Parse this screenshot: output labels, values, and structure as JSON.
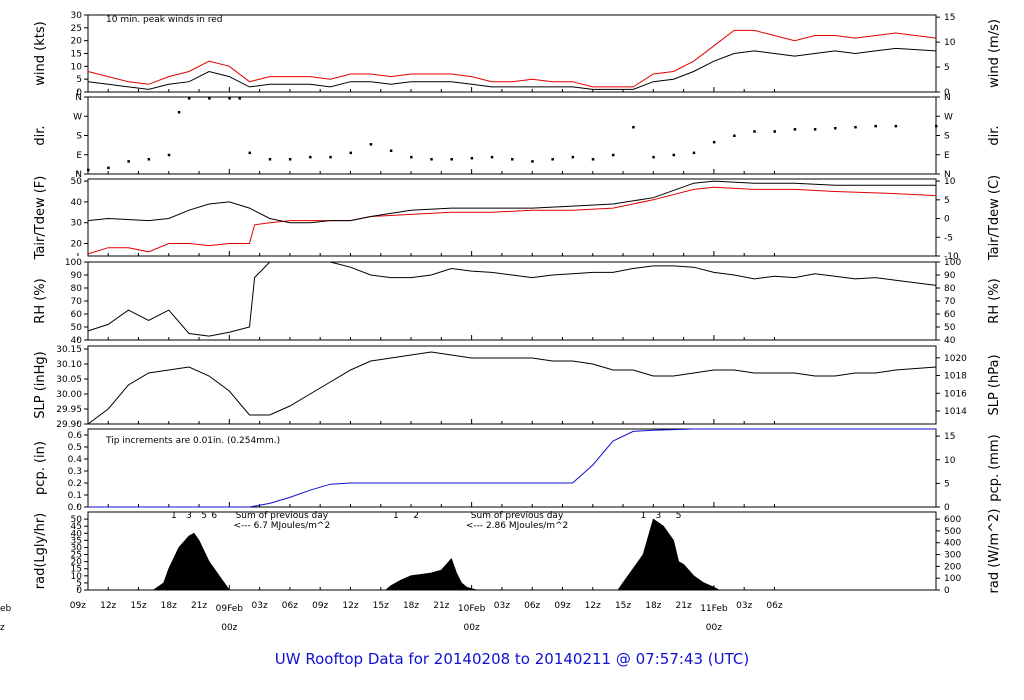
{
  "title": "UW Rooftop Data for 20140208  to  20140211 @ 07:57:43  (UTC)",
  "colors": {
    "red": "#e00000",
    "blue": "#1010d0",
    "magenta": "#b000c0",
    "black": "#000000"
  },
  "chart_data": {
    "type": "line",
    "x_hours": [
      -14,
      70
    ],
    "x_tick_labels": [
      "09z",
      "12z",
      "15z",
      "18z",
      "21z",
      "03z",
      "06z",
      "09z",
      "12z",
      "15z",
      "18z",
      "21z",
      "03z",
      "06z",
      "09z",
      "12z",
      "15z",
      "18z",
      "21z",
      "03z",
      "06z"
    ],
    "x_tick_hours": [
      -15,
      -12,
      -9,
      -6,
      -3,
      3,
      6,
      9,
      12,
      15,
      18,
      21,
      27,
      30,
      33,
      36,
      39,
      42,
      45,
      51,
      54
    ],
    "date_labels": [
      {
        "date": "09Feb",
        "time": "00z",
        "hour": 0
      },
      {
        "date": "10Feb",
        "time": "00z",
        "hour": 24
      },
      {
        "date": "11Feb",
        "time": "00z",
        "hour": 48
      }
    ],
    "edge_date": {
      "date": "eb",
      "time": "z"
    },
    "panels": [
      {
        "id": "wind",
        "ylabel": "wind (kts)",
        "ylabel_right": "wind (m/s)",
        "ylim": [
          0,
          30
        ],
        "left_ticks": [
          "0",
          "5",
          "10",
          "15",
          "20",
          "25",
          "30"
        ],
        "right_ticks": [
          "0",
          "5",
          "10",
          "15"
        ],
        "right_tick_vals": [
          0,
          5,
          10,
          15
        ],
        "right_scale": 1.944,
        "annotation": "10 min. peak winds in red",
        "series": [
          {
            "name": "wind",
            "hours": [
              -14,
              -12,
              -10,
              -8,
              -6,
              -4,
              -2,
              0,
              2,
              4,
              6,
              8,
              10,
              12,
              14,
              16,
              18,
              20,
              22,
              24,
              26,
              28,
              30,
              32,
              34,
              36,
              38,
              40,
              42,
              44,
              46,
              48,
              50,
              52,
              54,
              56,
              58,
              60,
              62,
              64,
              66,
              70
            ],
            "values": [
              4,
              3,
              2,
              1,
              3,
              4,
              8,
              6,
              2,
              3,
              3,
              3,
              2,
              4,
              4,
              3,
              4,
              4,
              4,
              3,
              2,
              2,
              2,
              2,
              2,
              1,
              1,
              1,
              4,
              5,
              8,
              12,
              15,
              16,
              15,
              14,
              15,
              16,
              15,
              16,
              17,
              16
            ]
          },
          {
            "name": "peak",
            "hours": [
              -14,
              -12,
              -10,
              -8,
              -6,
              -4,
              -2,
              0,
              2,
              4,
              6,
              8,
              10,
              12,
              14,
              16,
              18,
              20,
              22,
              24,
              26,
              28,
              30,
              32,
              34,
              36,
              38,
              40,
              42,
              44,
              46,
              48,
              50,
              52,
              54,
              56,
              58,
              60,
              62,
              64,
              66,
              70
            ],
            "values": [
              8,
              6,
              4,
              3,
              6,
              8,
              12,
              10,
              4,
              6,
              6,
              6,
              5,
              7,
              7,
              6,
              7,
              7,
              7,
              6,
              4,
              4,
              5,
              4,
              4,
              2,
              2,
              2,
              7,
              8,
              12,
              18,
              24,
              24,
              22,
              20,
              22,
              22,
              21,
              22,
              23,
              21
            ]
          }
        ]
      },
      {
        "id": "dir",
        "ylabel": "dir.",
        "ylabel_right": "dir.",
        "left_ticks": [
          "N",
          "E",
          "S",
          "W",
          "N"
        ],
        "right_ticks": [
          "N",
          "E",
          "S",
          "W",
          "N"
        ],
        "ylim": [
          0,
          360
        ],
        "series": [
          {
            "name": "direction",
            "hours": [
              -14,
              -12,
              -10,
              -8,
              -6,
              -5,
              -4,
              -2,
              0,
              1,
              2,
              4,
              6,
              8,
              10,
              12,
              14,
              16,
              18,
              20,
              22,
              24,
              26,
              28,
              30,
              32,
              34,
              36,
              38,
              40,
              42,
              44,
              46,
              48,
              50,
              52,
              54,
              56,
              58,
              60,
              62,
              64,
              66,
              70
            ],
            "values": [
              20,
              30,
              60,
              70,
              90,
              290,
              355,
              355,
              355,
              355,
              100,
              70,
              70,
              80,
              80,
              100,
              140,
              110,
              80,
              70,
              70,
              75,
              80,
              70,
              60,
              70,
              80,
              70,
              90,
              220,
              80,
              90,
              100,
              150,
              180,
              200,
              200,
              210,
              210,
              215,
              220,
              225,
              225,
              225
            ]
          }
        ]
      },
      {
        "id": "temp",
        "ylabel": "Tair/Tdew (F)",
        "ylabel_right": "Tair/Tdew (C)",
        "ylim": [
          14,
          51
        ],
        "left_ticks": [
          "20",
          "30",
          "40",
          "50"
        ],
        "right_ticks": [
          "-10",
          "-5",
          "0",
          "5",
          "10"
        ],
        "right_tick_vals": [
          -10,
          -5,
          0,
          5,
          10
        ],
        "series": [
          {
            "name": "Tair",
            "hours": [
              -14,
              -12,
              -8,
              -6,
              -4,
              -2,
              0,
              2,
              4,
              6,
              8,
              10,
              12,
              14,
              18,
              22,
              26,
              30,
              34,
              38,
              42,
              46,
              48,
              52,
              56,
              60,
              66,
              70
            ],
            "values": [
              31,
              32,
              31,
              32,
              36,
              39,
              40,
              37,
              32,
              30,
              30,
              31,
              31,
              33,
              36,
              37,
              37,
              37,
              38,
              39,
              42,
              49,
              50,
              49,
              49,
              48,
              48,
              48
            ]
          },
          {
            "name": "Tdew",
            "hours": [
              -14,
              -12,
              -10,
              -8,
              -6,
              -4,
              -2,
              0,
              2,
              2.5,
              4,
              6,
              8,
              10,
              12,
              14,
              18,
              22,
              26,
              30,
              34,
              38,
              42,
              46,
              48,
              52,
              56,
              60,
              66,
              70
            ],
            "values": [
              15,
              18,
              18,
              16,
              20,
              20,
              19,
              20,
              20,
              29,
              30,
              31,
              31,
              31,
              31,
              33,
              34,
              35,
              35,
              36,
              36,
              37,
              41,
              46,
              47,
              46,
              46,
              45,
              44,
              43
            ]
          }
        ]
      },
      {
        "id": "rh",
        "ylabel": "RH (%)",
        "ylabel_right": "RH (%)",
        "ylim": [
          40,
          100
        ],
        "left_ticks": [
          "40",
          "50",
          "60",
          "70",
          "80",
          "90",
          "100"
        ],
        "right_ticks": [
          "40",
          "50",
          "60",
          "70",
          "80",
          "90",
          "100"
        ],
        "series": [
          {
            "name": "RH",
            "hours": [
              -14,
              -12,
              -10,
              -8,
              -6,
              -4,
              -2,
              0,
              2,
              2.5,
              4,
              6,
              8,
              10,
              12,
              14,
              16,
              18,
              20,
              22,
              24,
              26,
              28,
              30,
              32,
              34,
              36,
              38,
              40,
              42,
              44,
              46,
              48,
              50,
              52,
              54,
              56,
              58,
              60,
              62,
              64,
              66,
              70
            ],
            "values": [
              47,
              52,
              63,
              55,
              63,
              45,
              43,
              46,
              50,
              88,
              100,
              100,
              100,
              100,
              96,
              90,
              88,
              88,
              90,
              95,
              93,
              92,
              90,
              88,
              90,
              91,
              92,
              92,
              95,
              97,
              97,
              96,
              92,
              90,
              87,
              89,
              88,
              91,
              89,
              87,
              88,
              86,
              82
            ]
          }
        ]
      },
      {
        "id": "slp",
        "ylabel": "SLP (inHg)",
        "ylabel_right": "SLP (hPa)",
        "ylim": [
          29.9,
          30.16
        ],
        "left_ticks": [
          "29.90",
          "29.95",
          "30.00",
          "30.05",
          "30.10",
          "30.15"
        ],
        "right_ticks": [
          "1014",
          "1016",
          "1018",
          "1020"
        ],
        "right_tick_vals": [
          1014,
          1016,
          1018,
          1020
        ],
        "series": [
          {
            "name": "SLP",
            "hours": [
              -14,
              -12,
              -10,
              -8,
              -6,
              -4,
              -2,
              0,
              2,
              4,
              6,
              8,
              10,
              12,
              14,
              16,
              18,
              20,
              22,
              24,
              26,
              28,
              30,
              32,
              34,
              36,
              38,
              40,
              42,
              44,
              46,
              48,
              50,
              52,
              54,
              56,
              58,
              60,
              62,
              64,
              66,
              70
            ],
            "values": [
              29.9,
              29.95,
              30.03,
              30.07,
              30.08,
              30.09,
              30.06,
              30.01,
              29.93,
              29.93,
              29.96,
              30.0,
              30.04,
              30.08,
              30.11,
              30.12,
              30.13,
              30.14,
              30.13,
              30.12,
              30.12,
              30.12,
              30.12,
              30.11,
              30.11,
              30.1,
              30.08,
              30.08,
              30.06,
              30.06,
              30.07,
              30.08,
              30.08,
              30.07,
              30.07,
              30.07,
              30.06,
              30.06,
              30.07,
              30.07,
              30.08,
              30.09
            ]
          }
        ]
      },
      {
        "id": "pcp",
        "ylabel": "pcp. (in)",
        "ylabel_right": "pcp. (mm)",
        "ylim": [
          0,
          0.65
        ],
        "left_ticks": [
          "0.0",
          "0.1",
          "0.2",
          "0.3",
          "0.4",
          "0.5",
          "0.6"
        ],
        "right_ticks": [
          "0",
          "5",
          "10",
          "15"
        ],
        "right_tick_vals": [
          0,
          5,
          10,
          15
        ],
        "annotation": "Tip increments are 0.01in. (0.254mm.)",
        "series": [
          {
            "name": "precip",
            "hours": [
              -14,
              2,
              4,
              6,
              8,
              10,
              12,
              14,
              16,
              18,
              20,
              22,
              24,
              26,
              28,
              30,
              34,
              36,
              38,
              40,
              42,
              46,
              70
            ],
            "values": [
              0,
              0,
              0.03,
              0.08,
              0.14,
              0.19,
              0.2,
              0.2,
              0.2,
              0.2,
              0.2,
              0.2,
              0.2,
              0.2,
              0.2,
              0.2,
              0.2,
              0.35,
              0.55,
              0.63,
              0.64,
              0.65,
              0.65
            ]
          }
        ]
      },
      {
        "id": "rad",
        "ylabel": "rad(Lgly/hr)",
        "ylabel_right": "rad (W/m^2)",
        "ylim": [
          0,
          55
        ],
        "left_ticks": [
          "0",
          "5",
          "10",
          "15",
          "20",
          "25",
          "30",
          "35",
          "40",
          "45",
          "50"
        ],
        "right_ticks": [
          "0",
          "100",
          "200",
          "300",
          "400",
          "500",
          "600"
        ],
        "right_tick_vals": [
          0,
          100,
          200,
          300,
          400,
          500,
          600
        ],
        "series": [
          {
            "name": "radiation",
            "hours": [
              -7.5,
              -6.5,
              -6,
              -5,
              -4,
              -3.5,
              -3,
              -2,
              -1,
              0,
              15.5,
              16,
              17,
              18,
              19,
              20,
              21,
              22,
              22.5,
              23,
              23.5,
              24.5,
              38.5,
              39,
              40,
              41,
              42,
              43,
              44,
              44.5,
              45,
              46,
              47,
              48,
              48.5
            ],
            "values": [
              0,
              5,
              15,
              30,
              38,
              40,
              35,
              20,
              10,
              0,
              0,
              3,
              7,
              10,
              11,
              12,
              14,
              22,
              12,
              5,
              2,
              0,
              0,
              5,
              15,
              25,
              50,
              45,
              35,
              20,
              18,
              10,
              5,
              2,
              0
            ]
          }
        ],
        "sun_hour_labels": [
          {
            "label": "1",
            "hour": -5.5
          },
          {
            "label": "3",
            "hour": -4
          },
          {
            "label": "5",
            "hour": -2.5
          },
          {
            "label": "6",
            "hour": -1.5
          },
          {
            "label": "1",
            "hour": 16.5
          },
          {
            "label": "2",
            "hour": 18.5
          },
          {
            "label": "1",
            "hour": 41
          },
          {
            "label": "3",
            "hour": 42.5
          },
          {
            "label": "5",
            "hour": 44.5
          }
        ],
        "annotations": [
          {
            "line1": "Sum of previous day",
            "line2": "<--- 6.7 MJoules/m^2",
            "hour": 5.2
          },
          {
            "line1": "Sum of previous day",
            "line2": "<--- 2.86 MJoules/m^2",
            "hour": 28.5
          }
        ]
      }
    ]
  }
}
